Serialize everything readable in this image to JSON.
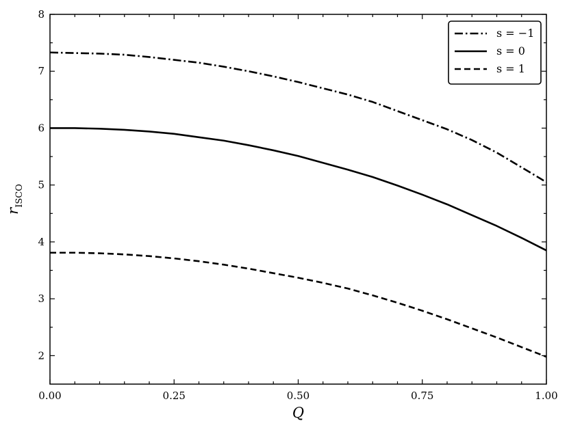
{
  "chart_data": {
    "type": "line",
    "title": "",
    "xlabel": "Q",
    "ylabel": "r_ISCO",
    "xlim": [
      0,
      1
    ],
    "ylim": [
      1.5,
      8
    ],
    "x_ticks": [
      0,
      0.25,
      0.5,
      0.75,
      1
    ],
    "x_tick_labels": [
      "0.00",
      "0.25",
      "0.50",
      "0.75",
      "1.00"
    ],
    "y_ticks": [
      2,
      3,
      4,
      5,
      6,
      7,
      8
    ],
    "y_tick_labels": [
      "2",
      "3",
      "4",
      "5",
      "6",
      "7",
      "8"
    ],
    "grid": false,
    "legend_position": "top-right",
    "series": [
      {
        "name": "s = −1",
        "style": "dashdot",
        "color": "#000000",
        "x": [
          0,
          0.05,
          0.1,
          0.15,
          0.2,
          0.25,
          0.3,
          0.35,
          0.4,
          0.45,
          0.5,
          0.55,
          0.6,
          0.65,
          0.7,
          0.75,
          0.8,
          0.85,
          0.9,
          0.95,
          1.0
        ],
        "y": [
          7.33,
          7.32,
          7.31,
          7.29,
          7.25,
          7.2,
          7.15,
          7.08,
          7.0,
          6.91,
          6.81,
          6.7,
          6.59,
          6.46,
          6.3,
          6.14,
          5.98,
          5.79,
          5.57,
          5.31,
          5.05
        ]
      },
      {
        "name": "s = 0",
        "style": "solid",
        "color": "#000000",
        "x": [
          0,
          0.05,
          0.1,
          0.15,
          0.2,
          0.25,
          0.3,
          0.35,
          0.4,
          0.45,
          0.5,
          0.55,
          0.6,
          0.65,
          0.7,
          0.75,
          0.8,
          0.85,
          0.9,
          0.95,
          1.0
        ],
        "y": [
          6.0,
          6.0,
          5.99,
          5.97,
          5.94,
          5.9,
          5.84,
          5.78,
          5.7,
          5.61,
          5.51,
          5.39,
          5.27,
          5.14,
          4.99,
          4.83,
          4.66,
          4.47,
          4.28,
          4.07,
          3.85
        ]
      },
      {
        "name": "s = 1",
        "style": "dashed",
        "color": "#000000",
        "x": [
          0,
          0.05,
          0.1,
          0.15,
          0.2,
          0.25,
          0.3,
          0.35,
          0.4,
          0.45,
          0.5,
          0.55,
          0.6,
          0.65,
          0.7,
          0.75,
          0.8,
          0.85,
          0.9,
          0.95,
          1.0
        ],
        "y": [
          3.81,
          3.81,
          3.8,
          3.78,
          3.75,
          3.71,
          3.66,
          3.6,
          3.53,
          3.45,
          3.37,
          3.28,
          3.18,
          3.06,
          2.93,
          2.79,
          2.64,
          2.48,
          2.32,
          2.15,
          1.98
        ]
      }
    ]
  }
}
